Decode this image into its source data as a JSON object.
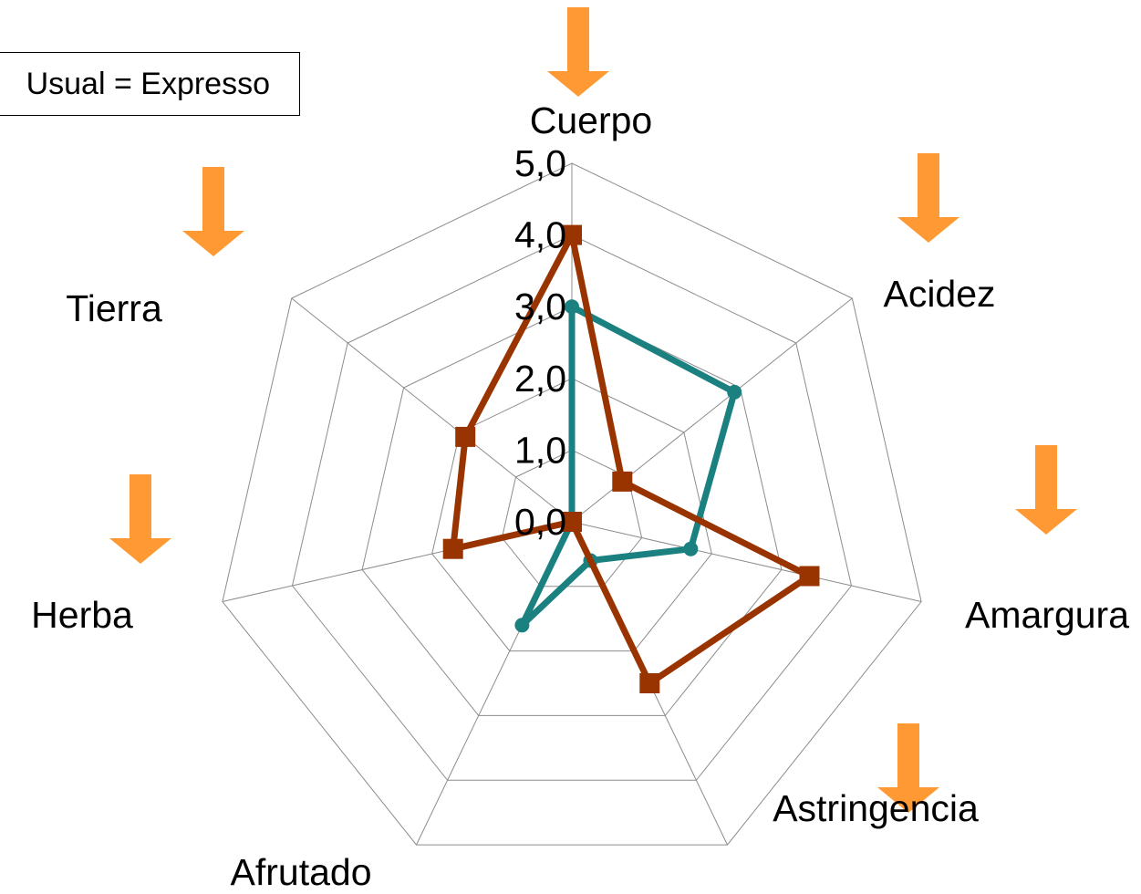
{
  "legend": {
    "text": "Usual = Expresso"
  },
  "chart_data": {
    "type": "radar",
    "axes": [
      "Cuerpo",
      "Acidez",
      "Amargura",
      "Astringencia",
      "Afrutado",
      "Herba",
      "Tierra"
    ],
    "radial_ticks": [
      "0,0",
      "1,0",
      "2,0",
      "3,0",
      "4,0",
      "5,0"
    ],
    "rlim": [
      0,
      5
    ],
    "grid": true,
    "series": [
      {
        "values": [
          3.0,
          2.9,
          1.7,
          0.6,
          1.6,
          0.0,
          0.0
        ],
        "color": "#1a8080",
        "marker": "circle"
      },
      {
        "values": [
          4.0,
          0.9,
          3.4,
          2.5,
          0.0,
          1.7,
          1.9
        ],
        "color": "#993300",
        "marker": "square"
      }
    ],
    "arrow_color": "#ff9933"
  }
}
